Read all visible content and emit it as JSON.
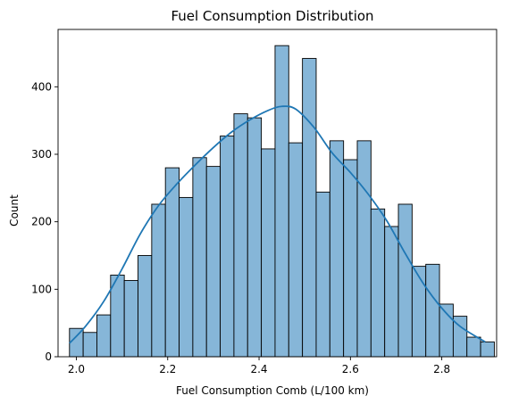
{
  "chart_data": {
    "type": "bar",
    "subtype": "histogram_with_kde",
    "title": "Fuel Consumption Distribution",
    "xlabel": "Fuel Consumption Comb (L/100 km)",
    "ylabel": "Count",
    "xlim": [
      1.96,
      2.92
    ],
    "ylim": [
      0,
      485
    ],
    "x_ticks": [
      2.0,
      2.2,
      2.4,
      2.6,
      2.8
    ],
    "y_ticks": [
      0,
      100,
      200,
      300,
      400
    ],
    "bin_start": 1.985,
    "bin_width": 0.03,
    "values": [
      42,
      36,
      62,
      121,
      113,
      150,
      226,
      280,
      236,
      295,
      282,
      327,
      360,
      354,
      308,
      461,
      317,
      442,
      244,
      320,
      292,
      320,
      219,
      193,
      226,
      134,
      137,
      78,
      60,
      29,
      22
    ],
    "kde": {
      "x": [
        1.985,
        2.02,
        2.06,
        2.1,
        2.14,
        2.18,
        2.22,
        2.26,
        2.3,
        2.34,
        2.38,
        2.42,
        2.45,
        2.48,
        2.52,
        2.56,
        2.6,
        2.64,
        2.68,
        2.72,
        2.76,
        2.8,
        2.84,
        2.895
      ],
      "y": [
        20,
        45,
        82,
        130,
        182,
        224,
        256,
        284,
        310,
        333,
        351,
        365,
        371,
        367,
        340,
        302,
        273,
        240,
        201,
        153,
        108,
        72,
        45,
        22
      ]
    },
    "colors": {
      "bar_fill": "#86b6d8",
      "bar_edge": "#000000",
      "kde_line": "#1f77b4"
    },
    "grid": false,
    "legend": "none"
  }
}
